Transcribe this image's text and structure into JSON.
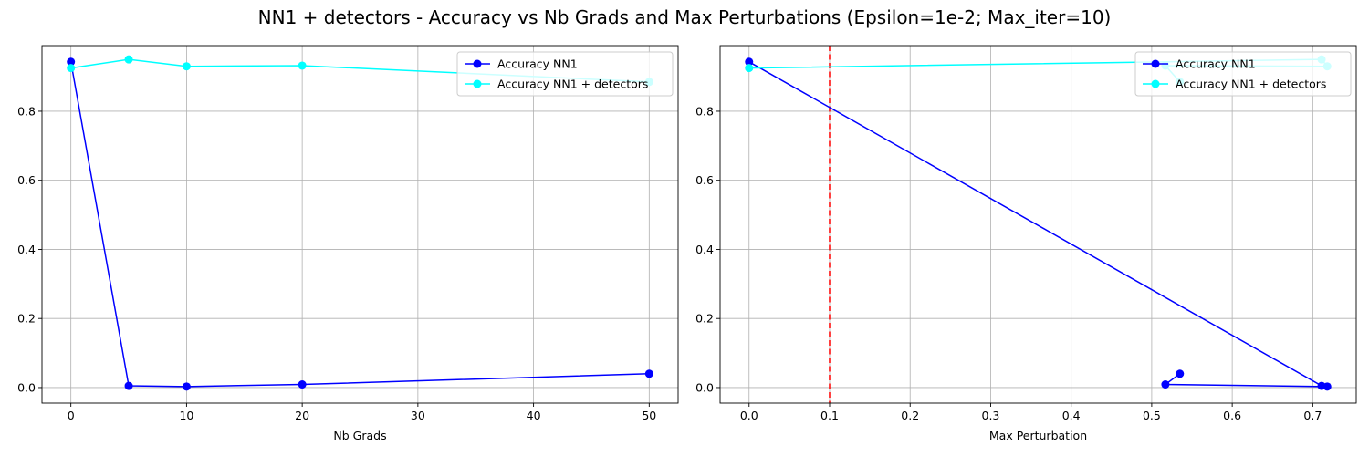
{
  "figure": {
    "suptitle": "NN1 + detectors - Accuracy vs Nb Grads and Max Perturbations (Epsilon=1e-2; Max_iter=10)"
  },
  "chart_data": [
    {
      "type": "line",
      "xlabel": "Nb Grads",
      "ylabel": "",
      "xlim": [
        -2.5,
        52.5
      ],
      "ylim": [
        -0.045,
        0.99
      ],
      "xticks": [
        0,
        10,
        20,
        30,
        40,
        50
      ],
      "xtick_labels": [
        "0",
        "10",
        "20",
        "30",
        "40",
        "50"
      ],
      "yticks": [
        0.0,
        0.2,
        0.4,
        0.6,
        0.8
      ],
      "ytick_labels": [
        "0.0",
        "0.2",
        "0.4",
        "0.6",
        "0.8"
      ],
      "grid": true,
      "legend_position": "top-right",
      "series": [
        {
          "name": "Accuracy NN1",
          "color": "#0000ff",
          "x": [
            0,
            5,
            10,
            20,
            50
          ],
          "y": [
            0.943,
            0.005,
            0.003,
            0.009,
            0.04
          ]
        },
        {
          "name": "Accuracy NN1 + detectors",
          "color": "#00ffff",
          "x": [
            0,
            5,
            10,
            20,
            50
          ],
          "y": [
            0.925,
            0.95,
            0.93,
            0.932,
            0.885
          ]
        }
      ],
      "vlines": []
    },
    {
      "type": "line",
      "xlabel": "Max Perturbation",
      "ylabel": "",
      "xlim": [
        -0.036,
        0.754
      ],
      "ylim": [
        -0.045,
        0.99
      ],
      "xticks": [
        0.0,
        0.1,
        0.2,
        0.3,
        0.4,
        0.5,
        0.6,
        0.7
      ],
      "xtick_labels": [
        "0.0",
        "0.1",
        "0.2",
        "0.3",
        "0.4",
        "0.5",
        "0.6",
        "0.7"
      ],
      "yticks": [
        0.0,
        0.2,
        0.4,
        0.6,
        0.8
      ],
      "ytick_labels": [
        "0.0",
        "0.2",
        "0.4",
        "0.6",
        "0.8"
      ],
      "grid": true,
      "legend_position": "top-right",
      "series": [
        {
          "name": "Accuracy NN1",
          "color": "#0000ff",
          "x": [
            0.0,
            0.711,
            0.718,
            0.517,
            0.535
          ],
          "y": [
            0.943,
            0.005,
            0.003,
            0.009,
            0.04
          ]
        },
        {
          "name": "Accuracy NN1 + detectors",
          "color": "#00ffff",
          "x": [
            0.0,
            0.711,
            0.718,
            0.517,
            0.535
          ],
          "y": [
            0.925,
            0.95,
            0.93,
            0.932,
            0.885
          ]
        }
      ],
      "vlines": [
        {
          "x": 0.1,
          "color": "#ff0000",
          "style": "dashed"
        }
      ]
    }
  ]
}
